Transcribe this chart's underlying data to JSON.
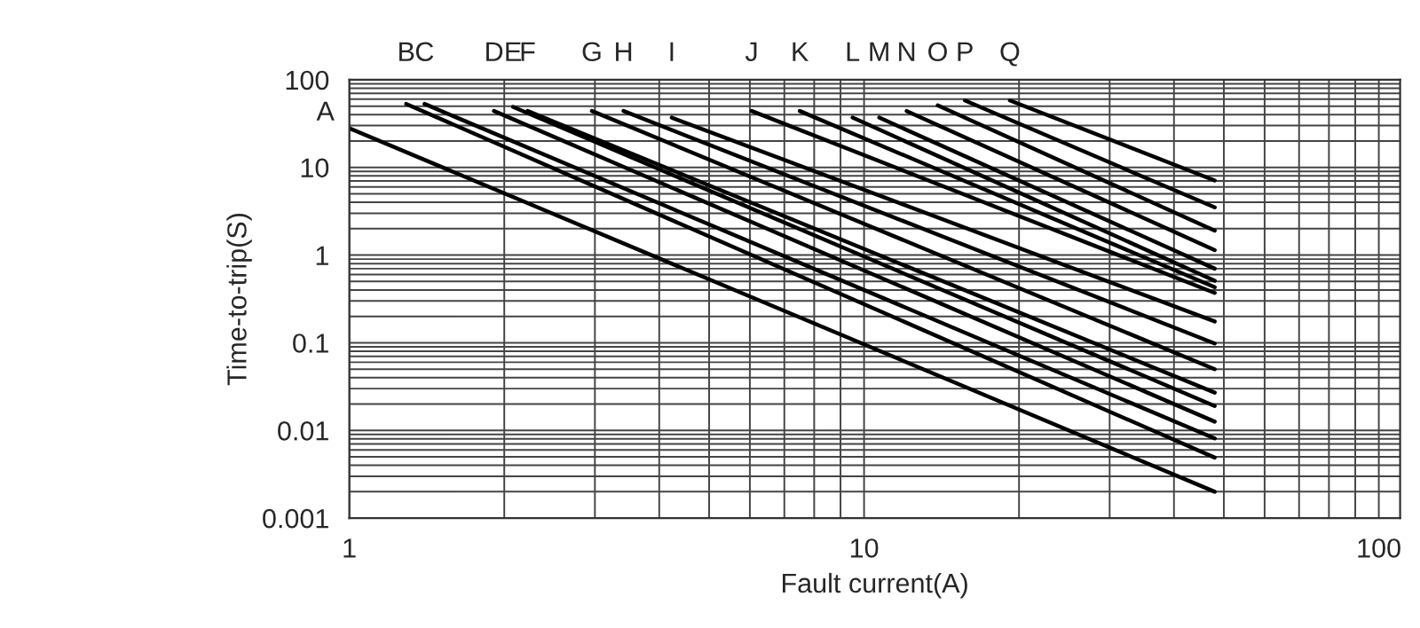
{
  "chart_data": {
    "type": "line",
    "xlabel": "Fault current(A)",
    "ylabel": "Time-to-trip(S)",
    "log": "xy",
    "grid": true,
    "xlim": [
      1,
      110
    ],
    "xticks": [
      1,
      10,
      100
    ],
    "ylim": [
      0.001,
      100
    ],
    "yticks": [
      0.001,
      0.01,
      0.1,
      1,
      10,
      100
    ],
    "marker": "none",
    "line_style": "solid",
    "legend": false,
    "series": [
      {
        "name": "A",
        "color": "#000000",
        "x": [
          1,
          48
        ],
        "values": [
          28,
          0.002
        ]
      },
      {
        "name": "B",
        "color": "#000000",
        "x": [
          1.29,
          48
        ],
        "values": [
          53,
          0.0049
        ]
      },
      {
        "name": "C",
        "color": "#000000",
        "x": [
          1.4,
          48
        ],
        "values": [
          53,
          0.0081
        ]
      },
      {
        "name": "D",
        "color": "#000000",
        "x": [
          1.91,
          48
        ],
        "values": [
          44,
          0.0126
        ]
      },
      {
        "name": "E",
        "color": "#000000",
        "x": [
          2.08,
          48
        ],
        "values": [
          49,
          0.019
        ]
      },
      {
        "name": "F",
        "color": "#000000",
        "x": [
          2.22,
          48
        ],
        "values": [
          44,
          0.027
        ]
      },
      {
        "name": "G",
        "color": "#000000",
        "x": [
          2.96,
          48
        ],
        "values": [
          44,
          0.05
        ]
      },
      {
        "name": "H",
        "color": "#000000",
        "x": [
          3.41,
          48
        ],
        "values": [
          44,
          0.098
        ]
      },
      {
        "name": "I",
        "color": "#000000",
        "x": [
          4.23,
          48
        ],
        "values": [
          37,
          0.175
        ]
      },
      {
        "name": "J",
        "color": "#000000",
        "x": [
          6.05,
          48
        ],
        "values": [
          44,
          0.37
        ]
      },
      {
        "name": "K",
        "color": "#000000",
        "x": [
          7.5,
          48
        ],
        "values": [
          44,
          0.43
        ]
      },
      {
        "name": "L",
        "color": "#000000",
        "x": [
          9.5,
          48
        ],
        "values": [
          37,
          0.51
        ]
      },
      {
        "name": "M",
        "color": "#000000",
        "x": [
          10.7,
          48
        ],
        "values": [
          37,
          0.7
        ]
      },
      {
        "name": "N",
        "color": "#000000",
        "x": [
          12.1,
          48
        ],
        "values": [
          44,
          1.14
        ]
      },
      {
        "name": "O",
        "color": "#000000",
        "x": [
          13.9,
          48
        ],
        "values": [
          51,
          1.9
        ]
      },
      {
        "name": "P",
        "color": "#000000",
        "x": [
          15.7,
          48
        ],
        "values": [
          58,
          3.5
        ]
      },
      {
        "name": "Q",
        "color": "#000000",
        "x": [
          19.2,
          48
        ],
        "values": [
          58,
          7.1
        ]
      }
    ]
  }
}
